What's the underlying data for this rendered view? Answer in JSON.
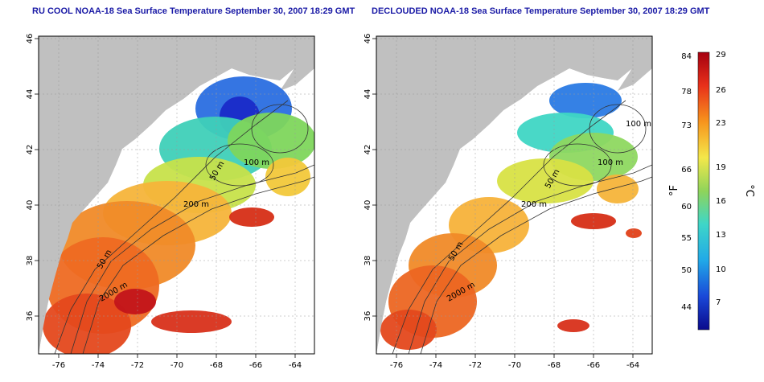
{
  "panels": [
    {
      "title": "RU COOL NOAA-18 Sea Surface Temperature September 30, 2007 18:29 GMT",
      "contour_labels": [
        "200 m",
        "100 m",
        "50 m",
        "50 m",
        "2000 m"
      ]
    },
    {
      "title": "DECLOUDED NOAA-18 Sea Surface Temperature September 30, 2007 18:29 GMT",
      "contour_labels": [
        "200 m",
        "100 m",
        "100 m",
        "50 m",
        "50 m",
        "2000 m"
      ]
    }
  ],
  "axes": {
    "x_ticks": [
      "-76",
      "-74",
      "-72",
      "-70",
      "-68",
      "-66",
      "-64"
    ],
    "y_ticks": [
      "46",
      "44",
      "42",
      "40",
      "38",
      "36"
    ]
  },
  "colorbar": {
    "f_label": "°F",
    "c_label": "°C",
    "f_ticks": [
      "84",
      "78",
      "73",
      "66",
      "60",
      "55",
      "50",
      "44"
    ],
    "c_ticks": [
      "29",
      "26",
      "23",
      "19",
      "16",
      "13",
      "10",
      "7"
    ]
  },
  "colors": {
    "land": "#c0c0c0",
    "title": "#1a1aa6",
    "warm": "#e8431a",
    "cold": "#1a3ad8"
  }
}
